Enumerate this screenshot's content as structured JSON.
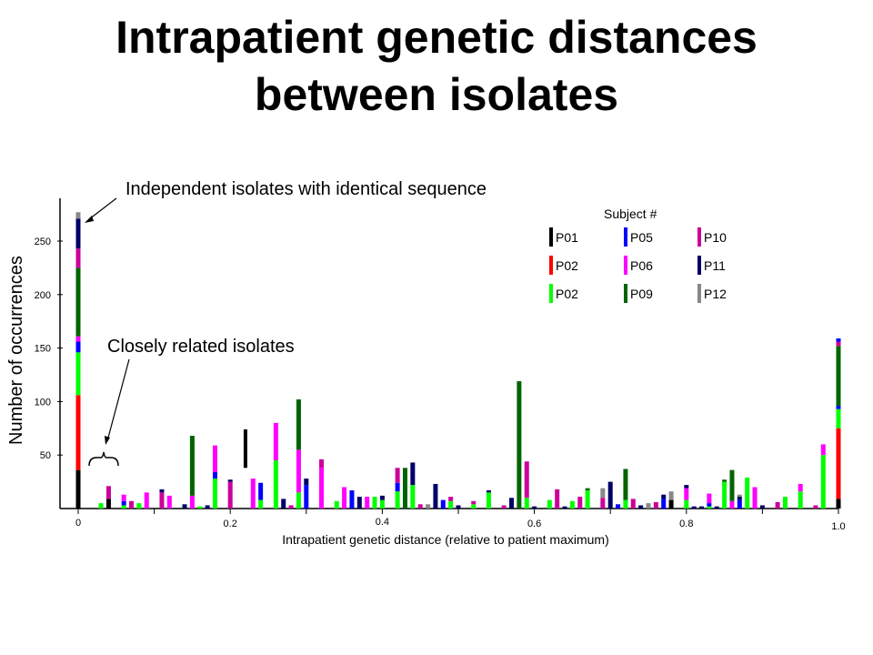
{
  "chart_data": {
    "type": "bar",
    "stacked": true,
    "title": "Intrapatient genetic distances between isolates",
    "title_lines": [
      "Intrapatient genetic distances",
      "between isolates"
    ],
    "xlabel": "Intrapatient  genetic  distance  (relative to patient maximum)",
    "ylabel": "Number of occurrences",
    "xlim": [
      0,
      1.0
    ],
    "ylim": [
      0,
      285
    ],
    "x_ticks": [
      {
        "v": 0,
        "label": "0"
      },
      {
        "v": 0.2,
        "label": "0.2"
      },
      {
        "v": 0.4,
        "label": "0.4"
      },
      {
        "v": 0.6,
        "label": "0.6"
      },
      {
        "v": 0.8,
        "label": "0.8"
      },
      {
        "v": 1.0,
        "label": "1.0"
      }
    ],
    "y_ticks": [
      {
        "v": 50,
        "label": "50"
      },
      {
        "v": 100,
        "label": "100"
      },
      {
        "v": 150,
        "label": "150"
      },
      {
        "v": 200,
        "label": "200"
      },
      {
        "v": 250,
        "label": "250"
      }
    ],
    "legend_title": "Subject  #",
    "series": [
      {
        "id": "P01",
        "name": "P01",
        "color": "#000000"
      },
      {
        "id": "P02",
        "name": "P02",
        "color": "#ff0000"
      },
      {
        "id": "P02b",
        "name": "P02",
        "color": "#00ff00"
      },
      {
        "id": "P05",
        "name": "P05",
        "color": "#0000ff"
      },
      {
        "id": "P06",
        "name": "P06",
        "color": "#ff00ff"
      },
      {
        "id": "P09",
        "name": "P09",
        "color": "#006400"
      },
      {
        "id": "P10",
        "name": "P10",
        "color": "#cc0099"
      },
      {
        "id": "P11",
        "name": "P11",
        "color": "#000066"
      },
      {
        "id": "P12",
        "name": "P12",
        "color": "#888888"
      }
    ],
    "legend_order": [
      "P01",
      "P05",
      "P10",
      "P02",
      "P06",
      "P11",
      "P02b",
      "P09",
      "P12"
    ],
    "bars": [
      {
        "x": 0.0,
        "seg": [
          [
            "P01",
            36
          ],
          [
            "P02",
            70
          ],
          [
            "P02b",
            40
          ],
          [
            "P05",
            10
          ],
          [
            "P06",
            5
          ],
          [
            "P09",
            64
          ],
          [
            "P10",
            18
          ],
          [
            "P11",
            28
          ],
          [
            "P12",
            6
          ]
        ]
      },
      {
        "x": 0.03,
        "seg": [
          [
            "P02b",
            5
          ]
        ]
      },
      {
        "x": 0.04,
        "seg": [
          [
            "P01",
            9
          ],
          [
            "P10",
            12
          ]
        ]
      },
      {
        "x": 0.06,
        "seg": [
          [
            "P02b",
            3
          ],
          [
            "P05",
            4
          ],
          [
            "P06",
            6
          ]
        ]
      },
      {
        "x": 0.07,
        "seg": [
          [
            "P10",
            7
          ]
        ]
      },
      {
        "x": 0.08,
        "seg": [
          [
            "P02b",
            5
          ]
        ]
      },
      {
        "x": 0.09,
        "seg": [
          [
            "P06",
            15
          ]
        ]
      },
      {
        "x": 0.11,
        "seg": [
          [
            "P10",
            15
          ],
          [
            "P11",
            3
          ]
        ]
      },
      {
        "x": 0.12,
        "seg": [
          [
            "P06",
            12
          ]
        ]
      },
      {
        "x": 0.14,
        "seg": [
          [
            "P11",
            4
          ]
        ]
      },
      {
        "x": 0.15,
        "seg": [
          [
            "P06",
            12
          ],
          [
            "P09",
            56
          ]
        ]
      },
      {
        "x": 0.16,
        "seg": [
          [
            "P02b",
            2
          ]
        ]
      },
      {
        "x": 0.17,
        "seg": [
          [
            "P11",
            3
          ]
        ]
      },
      {
        "x": 0.18,
        "seg": [
          [
            "P02b",
            28
          ],
          [
            "P05",
            6
          ],
          [
            "P06",
            25
          ]
        ]
      },
      {
        "x": 0.2,
        "seg": [
          [
            "P10",
            25
          ],
          [
            "P11",
            2
          ]
        ]
      },
      {
        "x": 0.23,
        "seg": [
          [
            "P06",
            28
          ]
        ]
      },
      {
        "x": 0.24,
        "seg": [
          [
            "P02b",
            8
          ],
          [
            "P05",
            16
          ]
        ]
      },
      {
        "x": 0.26,
        "seg": [
          [
            "P02b",
            45
          ],
          [
            "P06",
            35
          ]
        ]
      },
      {
        "x": 0.27,
        "seg": [
          [
            "P11",
            9
          ]
        ]
      },
      {
        "x": 0.28,
        "seg": [
          [
            "P10",
            3
          ]
        ]
      },
      {
        "x": 0.29,
        "seg": [
          [
            "P02b",
            15
          ],
          [
            "P06",
            40
          ],
          [
            "P09",
            47
          ]
        ]
      },
      {
        "x": 0.3,
        "seg": [
          [
            "P05",
            22
          ],
          [
            "P11",
            6
          ]
        ]
      },
      {
        "x": 0.32,
        "seg": [
          [
            "P06",
            38
          ],
          [
            "P10",
            8
          ]
        ]
      },
      {
        "x": 0.34,
        "seg": [
          [
            "P02b",
            7
          ]
        ]
      },
      {
        "x": 0.35,
        "seg": [
          [
            "P06",
            20
          ]
        ]
      },
      {
        "x": 0.36,
        "seg": [
          [
            "P05",
            17
          ]
        ]
      },
      {
        "x": 0.37,
        "seg": [
          [
            "P11",
            11
          ]
        ]
      },
      {
        "x": 0.38,
        "seg": [
          [
            "P06",
            11
          ]
        ]
      },
      {
        "x": 0.39,
        "seg": [
          [
            "P02b",
            11
          ]
        ]
      },
      {
        "x": 0.4,
        "seg": [
          [
            "P02b",
            8
          ],
          [
            "P11",
            4
          ]
        ]
      },
      {
        "x": 0.42,
        "seg": [
          [
            "P02b",
            16
          ],
          [
            "P05",
            8
          ],
          [
            "P10",
            14
          ]
        ]
      },
      {
        "x": 0.43,
        "seg": [
          [
            "P09",
            38
          ]
        ]
      },
      {
        "x": 0.44,
        "seg": [
          [
            "P02b",
            22
          ],
          [
            "P11",
            21
          ]
        ]
      },
      {
        "x": 0.45,
        "seg": [
          [
            "P10",
            4
          ]
        ]
      },
      {
        "x": 0.46,
        "seg": [
          [
            "P12",
            4
          ]
        ]
      },
      {
        "x": 0.47,
        "seg": [
          [
            "P11",
            23
          ]
        ]
      },
      {
        "x": 0.48,
        "seg": [
          [
            "P05",
            8
          ]
        ]
      },
      {
        "x": 0.49,
        "seg": [
          [
            "P02b",
            7
          ],
          [
            "P10",
            4
          ]
        ]
      },
      {
        "x": 0.5,
        "seg": [
          [
            "P11",
            3
          ]
        ]
      },
      {
        "x": 0.52,
        "seg": [
          [
            "P02b",
            4
          ],
          [
            "P10",
            3
          ]
        ]
      },
      {
        "x": 0.54,
        "seg": [
          [
            "P02b",
            15
          ],
          [
            "P11",
            2
          ]
        ]
      },
      {
        "x": 0.56,
        "seg": [
          [
            "P10",
            3
          ]
        ]
      },
      {
        "x": 0.57,
        "seg": [
          [
            "P11",
            10
          ]
        ]
      },
      {
        "x": 0.58,
        "seg": [
          [
            "P09",
            119
          ]
        ]
      },
      {
        "x": 0.59,
        "seg": [
          [
            "P02b",
            10
          ],
          [
            "P10",
            34
          ]
        ]
      },
      {
        "x": 0.6,
        "seg": [
          [
            "P11",
            2
          ]
        ]
      },
      {
        "x": 0.62,
        "seg": [
          [
            "P02b",
            8
          ]
        ]
      },
      {
        "x": 0.63,
        "seg": [
          [
            "P10",
            18
          ]
        ]
      },
      {
        "x": 0.64,
        "seg": [
          [
            "P11",
            2
          ]
        ]
      },
      {
        "x": 0.65,
        "seg": [
          [
            "P02b",
            7
          ]
        ]
      },
      {
        "x": 0.66,
        "seg": [
          [
            "P10",
            11
          ]
        ]
      },
      {
        "x": 0.67,
        "seg": [
          [
            "P02b",
            17
          ],
          [
            "P09",
            2
          ]
        ]
      },
      {
        "x": 0.69,
        "seg": [
          [
            "P10",
            10
          ],
          [
            "P12",
            9
          ]
        ]
      },
      {
        "x": 0.7,
        "seg": [
          [
            "P11",
            25
          ]
        ]
      },
      {
        "x": 0.71,
        "seg": [
          [
            "P05",
            4
          ]
        ]
      },
      {
        "x": 0.72,
        "seg": [
          [
            "P02b",
            8
          ],
          [
            "P09",
            29
          ]
        ]
      },
      {
        "x": 0.73,
        "seg": [
          [
            "P10",
            9
          ]
        ]
      },
      {
        "x": 0.74,
        "seg": [
          [
            "P11",
            3
          ]
        ]
      },
      {
        "x": 0.75,
        "seg": [
          [
            "P12",
            5
          ]
        ]
      },
      {
        "x": 0.76,
        "seg": [
          [
            "P10",
            6
          ]
        ]
      },
      {
        "x": 0.77,
        "seg": [
          [
            "P05",
            9
          ],
          [
            "P11",
            4
          ]
        ]
      },
      {
        "x": 0.78,
        "seg": [
          [
            "P01",
            8
          ],
          [
            "P12",
            8
          ]
        ]
      },
      {
        "x": 0.8,
        "seg": [
          [
            "P02b",
            8
          ],
          [
            "P06",
            11
          ],
          [
            "P11",
            3
          ]
        ]
      },
      {
        "x": 0.81,
        "seg": [
          [
            "P11",
            2
          ]
        ]
      },
      {
        "x": 0.82,
        "seg": [
          [
            "P11",
            2
          ]
        ]
      },
      {
        "x": 0.83,
        "seg": [
          [
            "P02b",
            2
          ],
          [
            "P05",
            3
          ],
          [
            "P06",
            9
          ]
        ]
      },
      {
        "x": 0.84,
        "seg": [
          [
            "P11",
            2
          ]
        ]
      },
      {
        "x": 0.85,
        "seg": [
          [
            "P02b",
            25
          ],
          [
            "P09",
            2
          ]
        ]
      },
      {
        "x": 0.86,
        "seg": [
          [
            "P06",
            7
          ],
          [
            "P09",
            29
          ]
        ]
      },
      {
        "x": 0.87,
        "seg": [
          [
            "P05",
            8
          ],
          [
            "P11",
            3
          ],
          [
            "P12",
            2
          ]
        ]
      },
      {
        "x": 0.88,
        "seg": [
          [
            "P02b",
            29
          ]
        ]
      },
      {
        "x": 0.89,
        "seg": [
          [
            "P06",
            20
          ]
        ]
      },
      {
        "x": 0.9,
        "seg": [
          [
            "P11",
            3
          ]
        ]
      },
      {
        "x": 0.92,
        "seg": [
          [
            "P10",
            6
          ]
        ]
      },
      {
        "x": 0.93,
        "seg": [
          [
            "P02b",
            11
          ]
        ]
      },
      {
        "x": 0.95,
        "seg": [
          [
            "P02b",
            16
          ],
          [
            "P06",
            7
          ]
        ]
      },
      {
        "x": 0.97,
        "seg": [
          [
            "P10",
            3
          ]
        ]
      },
      {
        "x": 0.98,
        "seg": [
          [
            "P02b",
            50
          ],
          [
            "P06",
            10
          ]
        ]
      },
      {
        "x": 1.0,
        "seg": [
          [
            "P01",
            9
          ],
          [
            "P02",
            66
          ],
          [
            "P02b",
            18
          ],
          [
            "P05",
            3
          ],
          [
            "P09",
            56
          ],
          [
            "P10",
            4
          ],
          [
            "P05",
            3
          ]
        ]
      }
    ],
    "highlighted_bar": {
      "x": 0.22,
      "y_from": 38,
      "y_to": 74,
      "color": "#000000"
    },
    "annotations": [
      {
        "text": "Independent isolates with identical sequence",
        "target_x": 0.0,
        "target_y": 268
      },
      {
        "text": "Closely related isolates",
        "bracket_from": 0.01,
        "bracket_to": 0.05
      }
    ]
  }
}
